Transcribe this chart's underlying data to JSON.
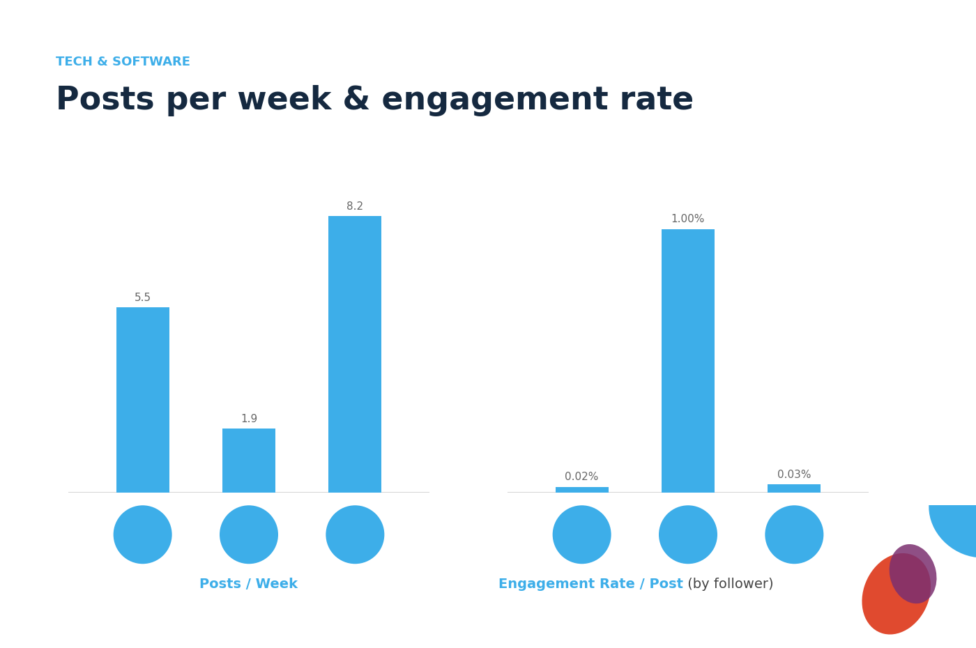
{
  "subtitle": "TECH & SOFTWARE",
  "title": "Posts per week & engagement rate",
  "subtitle_color": "#3daee9",
  "title_color": "#152940",
  "background_color": "#ffffff",
  "header_bar_color": "#3daee9",
  "bar_color": "#3daee9",
  "posts_values": [
    5.5,
    1.9,
    8.2
  ],
  "posts_labels": [
    "5.5",
    "1.9",
    "8.2"
  ],
  "engagement_values": [
    0.02,
    1.0,
    0.03
  ],
  "engagement_labels": [
    "0.02%",
    "1.00%",
    "0.03%"
  ],
  "xlabel_posts": "Posts / Week",
  "xlabel_engagement": "Engagement Rate / Post",
  "xlabel_engagement_suffix": " (by follower)",
  "icon_bg_color": "#3daee9",
  "icon_fg_color": "#ffffff",
  "label_color": "#3daee9",
  "value_label_color": "#666666",
  "axis_line_color": "#cccccc",
  "logo_bg_color": "#111111",
  "logo_text_color": "#ffffff",
  "blob_blue": "#3daee9",
  "blob_red": "#e04a2f",
  "blob_purple": "#7b3070"
}
